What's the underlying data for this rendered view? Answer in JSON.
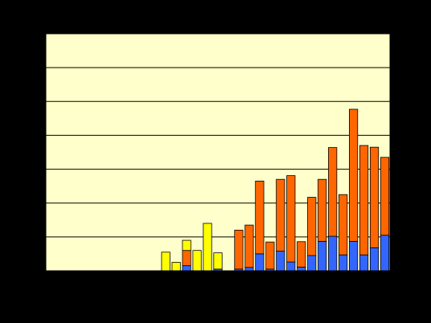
{
  "chart_data": {
    "type": "bar",
    "stacked": true,
    "title": "",
    "xlabel": "",
    "ylabel": "",
    "ylim": [
      0,
      7
    ],
    "gridlines": [
      1,
      2,
      3,
      4,
      5,
      6,
      7
    ],
    "grid": true,
    "legend": "none",
    "n_slots": 33,
    "colors": {
      "background": "#000000",
      "plot_area": "#FFFFCC",
      "yellow": "#FFFF00",
      "orange": "#FF6600",
      "blue": "#3366FF",
      "gridline": "#000000"
    },
    "series": [
      {
        "key": "blue",
        "values": [
          0,
          0,
          0,
          0,
          0,
          0,
          0,
          0,
          0,
          0,
          0,
          0,
          0,
          0.15,
          0,
          0,
          0.05,
          0,
          0.05,
          0.1,
          0.5,
          0.05,
          0.58,
          0.26,
          0.11,
          0.45,
          0.87,
          1.02,
          0.47,
          0.87,
          0.47,
          0.68,
          1.05
        ]
      },
      {
        "key": "orange",
        "values": [
          0,
          0,
          0,
          0,
          0,
          0,
          0,
          0,
          0,
          0,
          0,
          0,
          0,
          0.45,
          0,
          0,
          0,
          0,
          1.15,
          1.25,
          2.15,
          0.8,
          2.12,
          2.55,
          0.75,
          1.72,
          1.83,
          2.62,
          1.78,
          3.9,
          3.23,
          2.97,
          2.3
        ]
      },
      {
        "key": "yellow",
        "values": [
          0,
          0,
          0,
          0,
          0,
          0,
          0,
          0,
          0,
          0,
          0,
          0.55,
          0.25,
          0.3,
          0.6,
          1.4,
          0.48,
          0,
          0,
          0,
          0,
          0,
          0,
          0,
          0,
          0,
          0,
          0,
          0,
          0,
          0,
          0,
          0
        ]
      }
    ]
  }
}
